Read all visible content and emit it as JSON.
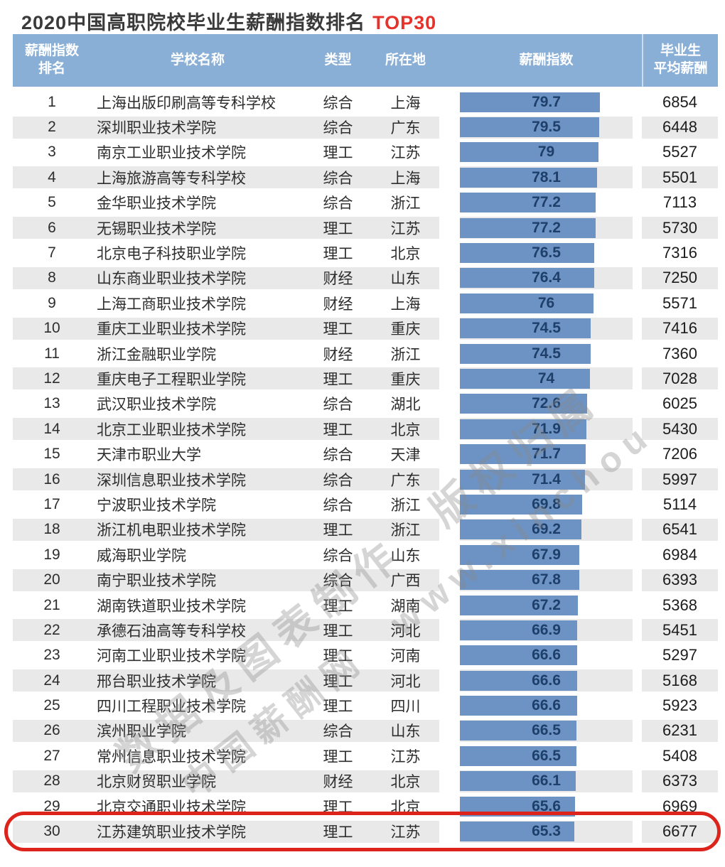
{
  "title": {
    "text": "2020中国高职院校毕业生薪酬指数排名",
    "highlight": "TOP30"
  },
  "header": {
    "rank": "薪酬指数\n排名",
    "school": "学校名称",
    "type": "类型",
    "location": "所在地",
    "index": "薪酬指数",
    "salary": "毕业生\n平均薪酬"
  },
  "watermark": {
    "line1": "数据及图表制作　版权归属",
    "line2": "中国薪酬网　www.xinchou"
  },
  "colors": {
    "header_bg": "#8aafd7",
    "row_alt_bg": "#e9e9e9",
    "bar_fill": "#6c93c4",
    "bar_value_text": "#1e3f69",
    "title_highlight": "#e5332c",
    "highlight_outline": "#dd241c",
    "watermark": "#8a8a8a"
  },
  "chart_data": {
    "type": "table",
    "title": "2020中国高职院校毕业生薪酬指数排名 TOP30",
    "columns": [
      "薪酬指数排名",
      "学校名称",
      "类型",
      "所在地",
      "薪酬指数",
      "毕业生平均薪酬"
    ],
    "bar_column": "薪酬指数",
    "bar_range": [
      0,
      80
    ],
    "highlighted_rank": 30,
    "rows": [
      [
        1,
        "上海出版印刷高等专科学校",
        "综合",
        "上海",
        79.7,
        6854
      ],
      [
        2,
        "深圳职业技术学院",
        "综合",
        "广东",
        79.5,
        6448
      ],
      [
        3,
        "南京工业职业技术学院",
        "理工",
        "江苏",
        79,
        5527
      ],
      [
        4,
        "上海旅游高等专科学校",
        "综合",
        "上海",
        78.1,
        5501
      ],
      [
        5,
        "金华职业技术学院",
        "综合",
        "浙江",
        77.2,
        7113
      ],
      [
        6,
        "无锡职业技术学院",
        "理工",
        "江苏",
        77.2,
        5730
      ],
      [
        7,
        "北京电子科技职业学院",
        "理工",
        "北京",
        76.5,
        7316
      ],
      [
        8,
        "山东商业职业技术学院",
        "财经",
        "山东",
        76.4,
        7250
      ],
      [
        9,
        "上海工商职业技术学院",
        "财经",
        "上海",
        76,
        5571
      ],
      [
        10,
        "重庆工业职业技术学院",
        "理工",
        "重庆",
        74.5,
        7416
      ],
      [
        11,
        "浙江金融职业学院",
        "财经",
        "浙江",
        74.5,
        7360
      ],
      [
        12,
        "重庆电子工程职业学院",
        "理工",
        "重庆",
        74,
        7028
      ],
      [
        13,
        "武汉职业技术学院",
        "综合",
        "湖北",
        72.6,
        6025
      ],
      [
        14,
        "北京工业职业技术学院",
        "理工",
        "北京",
        71.9,
        5430
      ],
      [
        15,
        "天津市职业大学",
        "综合",
        "天津",
        71.7,
        7206
      ],
      [
        16,
        "深圳信息职业技术学院",
        "综合",
        "广东",
        71.4,
        5997
      ],
      [
        17,
        "宁波职业技术学院",
        "综合",
        "浙江",
        69.8,
        5114
      ],
      [
        18,
        "浙江机电职业技术学院",
        "理工",
        "浙江",
        69.2,
        6541
      ],
      [
        19,
        "威海职业学院",
        "综合",
        "山东",
        67.9,
        6984
      ],
      [
        20,
        "南宁职业技术学院",
        "综合",
        "广西",
        67.8,
        6393
      ],
      [
        21,
        "湖南铁道职业技术学院",
        "理工",
        "湖南",
        67.2,
        5368
      ],
      [
        22,
        "承德石油高等专科学校",
        "理工",
        "河北",
        66.9,
        5451
      ],
      [
        23,
        "河南工业职业技术学院",
        "理工",
        "河南",
        66.6,
        5297
      ],
      [
        24,
        "邢台职业技术学院",
        "理工",
        "河北",
        66.6,
        5168
      ],
      [
        25,
        "四川工程职业技术学院",
        "理工",
        "四川",
        66.6,
        5923
      ],
      [
        26,
        "滨州职业学院",
        "综合",
        "山东",
        66.5,
        6231
      ],
      [
        27,
        "常州信息职业技术学院",
        "理工",
        "江苏",
        66.5,
        5408
      ],
      [
        28,
        "北京财贸职业学院",
        "财经",
        "北京",
        66.1,
        6373
      ],
      [
        29,
        "北京交通职业技术学院",
        "理工",
        "北京",
        65.6,
        6969
      ],
      [
        30,
        "江苏建筑职业技术学院",
        "理工",
        "江苏",
        65.3,
        6677
      ]
    ]
  }
}
